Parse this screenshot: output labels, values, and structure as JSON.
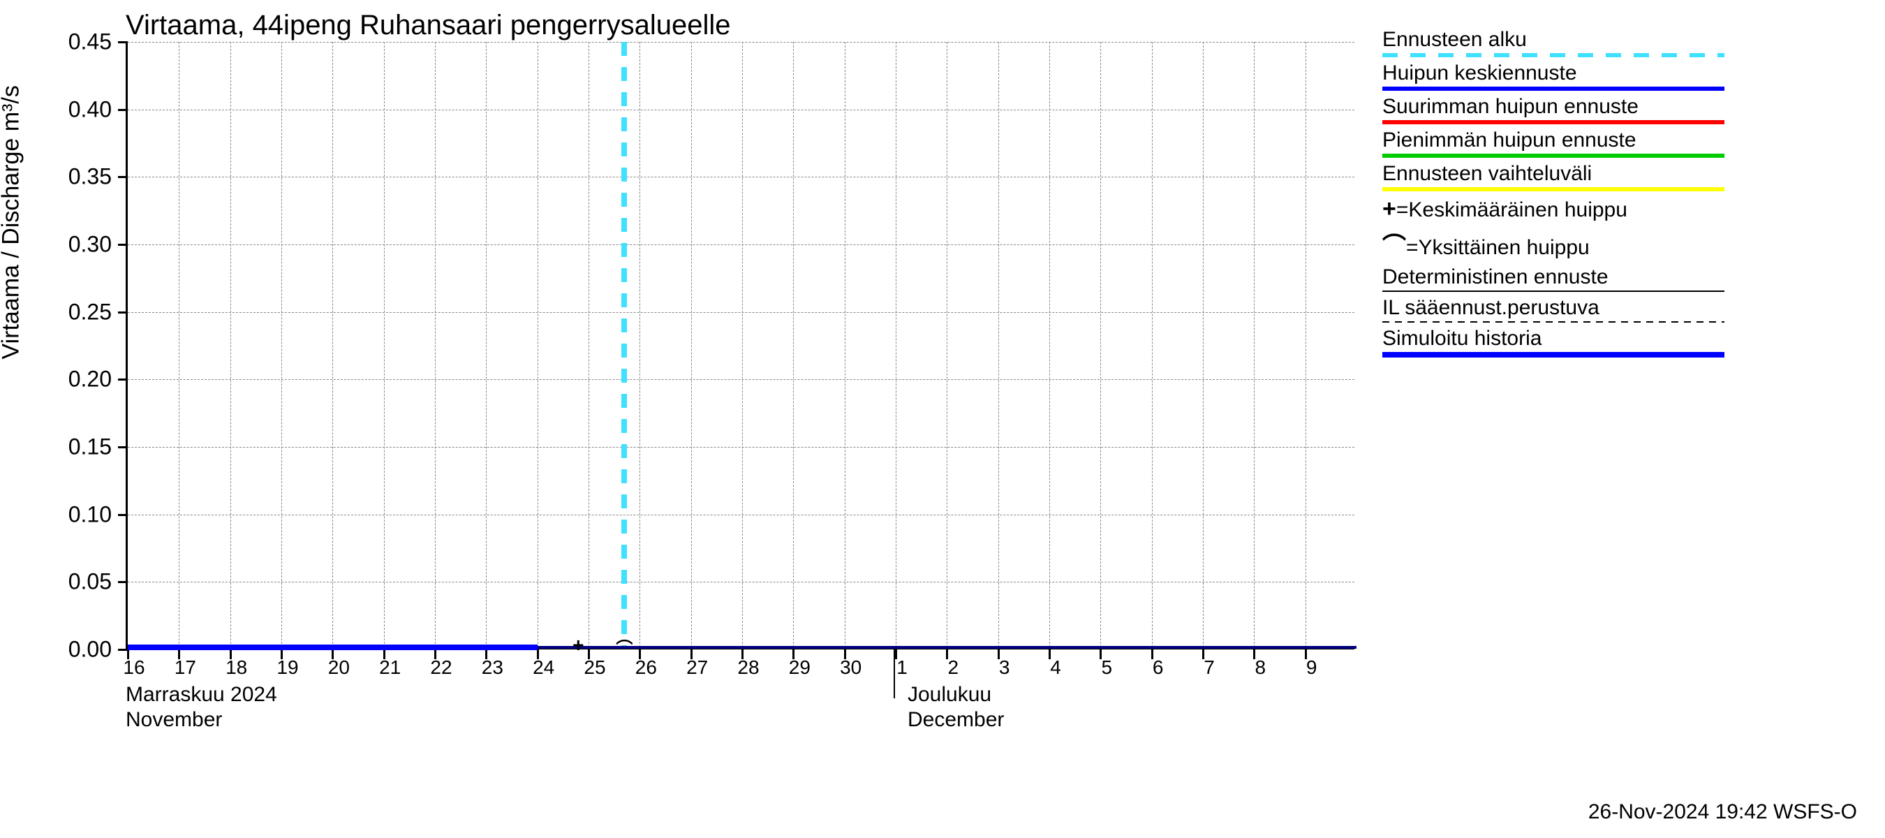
{
  "chart": {
    "type": "line",
    "title": "Virtaama, 44ipeng Ruhansaari pengerrysalueelle",
    "y_axis_label": "Virtaama / Discharge    m³/s",
    "background_color": "#ffffff",
    "grid_color": "#888888",
    "axis_color": "#000000",
    "title_fontsize": 40,
    "label_fontsize": 34,
    "tick_fontsize": 32,
    "ylim": [
      0.0,
      0.45
    ],
    "ytick_step": 0.05,
    "yticks": [
      "0.00",
      "0.05",
      "0.10",
      "0.15",
      "0.20",
      "0.25",
      "0.30",
      "0.35",
      "0.40",
      "0.45"
    ],
    "x_days": [
      "16",
      "17",
      "18",
      "19",
      "20",
      "21",
      "22",
      "23",
      "24",
      "25",
      "26",
      "27",
      "28",
      "29",
      "30",
      "1",
      "2",
      "3",
      "4",
      "5",
      "6",
      "7",
      "8",
      "9"
    ],
    "month_labels": {
      "nov_fi": "Marraskuu 2024",
      "nov_en": "November",
      "dec_fi": "Joulukuu",
      "dec_en": "December"
    },
    "forecast_start_day_index": 9.7,
    "month_boundary_index": 15,
    "series": {
      "history": {
        "color": "#0000ff",
        "line_width": 8,
        "value": 0.0,
        "start_index": 0,
        "end_index": 8
      },
      "peak_mean": {
        "color": "#0000ff",
        "line_width": 4,
        "value": 0.0,
        "start_index": 8,
        "end_index": 24
      },
      "peak_max": {
        "color": "#ff0000",
        "line_width": 4,
        "value": 0.0
      },
      "peak_min": {
        "color": "#00cc00",
        "line_width": 4,
        "value": 0.0
      },
      "range": {
        "color": "#ffff00",
        "line_width": 4,
        "value": 0.0
      },
      "deterministic": {
        "color": "#000000",
        "line_width": 2,
        "value": 0.0
      },
      "il_forecast": {
        "color": "#000000",
        "line_width": 2,
        "dashed": true,
        "value": 0.0
      }
    },
    "peak_markers": {
      "plus_symbol": "+",
      "arc_symbol": "⌒",
      "plus_index": 8.8,
      "arc_index": 9.7
    }
  },
  "legend": {
    "items": [
      {
        "label": "Ennusteen alku",
        "style": "dashed",
        "color": "#40e0ff",
        "thick": true
      },
      {
        "label": "Huipun keskiennuste",
        "style": "solid",
        "color": "#0000ff",
        "thick": true
      },
      {
        "label": "Suurimman huipun ennuste",
        "style": "solid",
        "color": "#ff0000",
        "thick": true
      },
      {
        "label": "Pienimmän huipun ennuste",
        "style": "solid",
        "color": "#00cc00",
        "thick": true
      },
      {
        "label": "Ennusteen vaihteluväli",
        "style": "solid",
        "color": "#ffff00",
        "thick": true
      },
      {
        "label": "=Keskimääräinen huippu",
        "symbol": "+",
        "style": "none"
      },
      {
        "label": "=Yksittäinen huippu",
        "symbol": "⌒",
        "style": "none"
      },
      {
        "label": "Deterministinen ennuste",
        "style": "thin-solid",
        "color": "#000000"
      },
      {
        "label": "IL sääennust.perustuva",
        "style": "thin-dashed",
        "color": "#000000"
      },
      {
        "label": "Simuloitu historia",
        "style": "solid",
        "color": "#0000ff",
        "thick": true,
        "line_width": 8
      }
    ]
  },
  "footer": {
    "stamp": "26-Nov-2024 19:42 WSFS-O"
  }
}
